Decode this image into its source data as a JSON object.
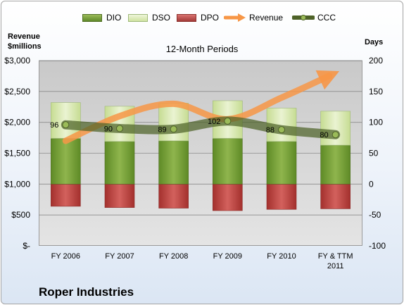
{
  "chart_data": {
    "type": "bar",
    "subtitle": "12-Month Periods",
    "company": "Roper Industries",
    "y_left_label": [
      "Revenue",
      "$millions"
    ],
    "y_right_label": "Days",
    "categories": [
      [
        "FY 2006"
      ],
      [
        "FY 2007"
      ],
      [
        "FY 2008"
      ],
      [
        "FY 2009"
      ],
      [
        "FY 2010"
      ],
      [
        "FY & TTM",
        "2011"
      ]
    ],
    "left_axis": {
      "min": 0,
      "max": 3000,
      "ticks": [
        "$-",
        "$500",
        "$1,000",
        "$1,500",
        "$2,000",
        "$2,500",
        "$3,000"
      ]
    },
    "right_axis": {
      "min": -100,
      "max": 200,
      "ticks": [
        "-100",
        "-50",
        "0",
        "50",
        "100",
        "150",
        "200"
      ]
    },
    "series": [
      {
        "name": "DIO",
        "unit": "days",
        "values": [
          74,
          69,
          70,
          74,
          69,
          63
        ],
        "color": "#77a23a"
      },
      {
        "name": "DSO",
        "unit": "days",
        "values": [
          58,
          57,
          61,
          61,
          54,
          55
        ],
        "color": "#d3e5a6"
      },
      {
        "name": "DPO",
        "unit": "days",
        "values": [
          -36,
          -38,
          -39,
          -43,
          -41,
          -40
        ],
        "color": "#c0504d"
      },
      {
        "name": "Revenue",
        "unit": "$millions",
        "values": [
          1700,
          2100,
          2300,
          2050,
          2400,
          2800
        ],
        "color": "#f79646"
      },
      {
        "name": "CCC",
        "unit": "days",
        "values": [
          96,
          90,
          89,
          102,
          88,
          80
        ],
        "color": "#4e6228"
      }
    ],
    "ccc_labels": [
      "96",
      "90",
      "89",
      "102",
      "88",
      "80"
    ]
  }
}
